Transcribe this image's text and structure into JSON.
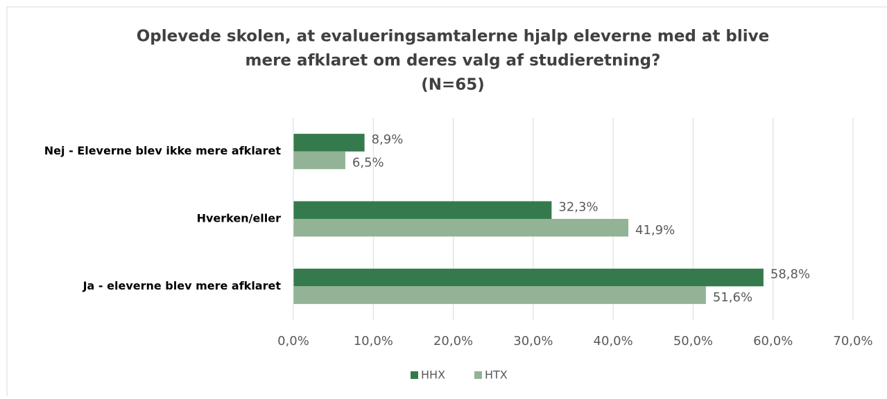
{
  "chart_data": {
    "type": "barh",
    "title": [
      "Oplevede skolen, at evalueringsamtalerne hjalp eleverne med at blive",
      "mere afklaret om deres valg af studieretning?",
      "(N=65)"
    ],
    "categories": [
      "Nej - Eleverne blev ikke mere afklaret",
      "Hverken/eller",
      "Ja - eleverne blev mere afklaret"
    ],
    "series": [
      {
        "name": "HHX",
        "color": "#357a4c",
        "values": [
          8.9,
          32.3,
          58.8
        ],
        "value_labels": [
          "8,9%",
          "32,3%",
          "58,8%"
        ]
      },
      {
        "name": "HTX",
        "color": "#93b396",
        "values": [
          6.5,
          41.9,
          51.6
        ],
        "value_labels": [
          "6,5%",
          "41,9%",
          "51,6%"
        ]
      }
    ],
    "xlim": [
      0,
      70
    ],
    "xticks": [
      {
        "value": 0,
        "label": "0,0%"
      },
      {
        "value": 10,
        "label": "10,0%"
      },
      {
        "value": 20,
        "label": "20,0%"
      },
      {
        "value": 30,
        "label": "30,0%"
      },
      {
        "value": 40,
        "label": "40,0%"
      },
      {
        "value": 50,
        "label": "50,0%"
      },
      {
        "value": 60,
        "label": "60,0%"
      },
      {
        "value": 70,
        "label": "70,0%"
      }
    ],
    "grid": true,
    "legend": "bottom"
  }
}
